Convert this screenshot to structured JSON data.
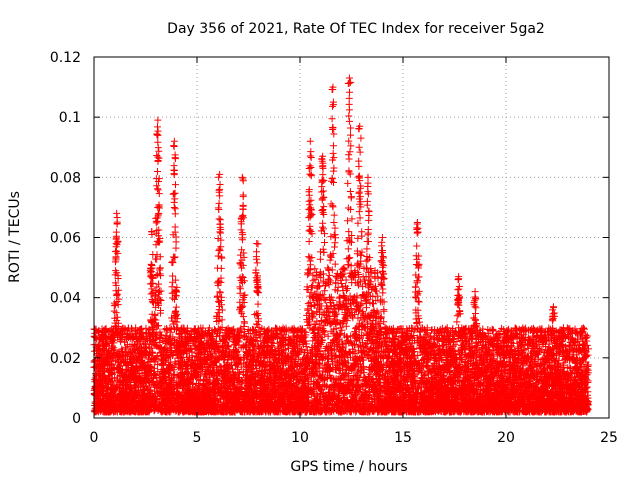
{
  "chart_data": {
    "type": "scatter",
    "title": "Day 356 of 2021, Rate Of TEC Index for receiver 5ga2",
    "xlabel": "GPS time / hours",
    "ylabel": "ROTI / TECUs",
    "xlim": [
      0,
      25
    ],
    "ylim": [
      0,
      0.12
    ],
    "x_ticks": [
      0,
      5,
      10,
      15,
      20,
      25
    ],
    "x_tick_labels": [
      "0",
      "5",
      "10",
      "15",
      "20",
      "25"
    ],
    "y_ticks": [
      0,
      0.02,
      0.04,
      0.06,
      0.08,
      0.1,
      0.12
    ],
    "y_tick_labels": [
      "0",
      "0.02",
      "0.04",
      "0.06",
      "0.08",
      "0.1",
      "0.12"
    ],
    "grid": true,
    "marker": "+",
    "series": [
      {
        "name": "ROTI",
        "color": "#ff0000",
        "x_range_hours": [
          0,
          24
        ],
        "baseline_band": [
          0.002,
          0.03
        ],
        "peaks": [
          {
            "x": 1.1,
            "y": 0.068
          },
          {
            "x": 2.8,
            "y": 0.062
          },
          {
            "x": 3.1,
            "y": 0.099
          },
          {
            "x": 3.9,
            "y": 0.092
          },
          {
            "x": 6.1,
            "y": 0.081
          },
          {
            "x": 7.2,
            "y": 0.08
          },
          {
            "x": 7.9,
            "y": 0.058
          },
          {
            "x": 10.5,
            "y": 0.092
          },
          {
            "x": 11.1,
            "y": 0.087
          },
          {
            "x": 11.6,
            "y": 0.11
          },
          {
            "x": 12.4,
            "y": 0.113
          },
          {
            "x": 12.9,
            "y": 0.097
          },
          {
            "x": 13.3,
            "y": 0.08
          },
          {
            "x": 14.0,
            "y": 0.06
          },
          {
            "x": 15.7,
            "y": 0.065
          },
          {
            "x": 17.7,
            "y": 0.047
          },
          {
            "x": 18.5,
            "y": 0.042
          },
          {
            "x": 22.3,
            "y": 0.037
          }
        ]
      }
    ]
  }
}
